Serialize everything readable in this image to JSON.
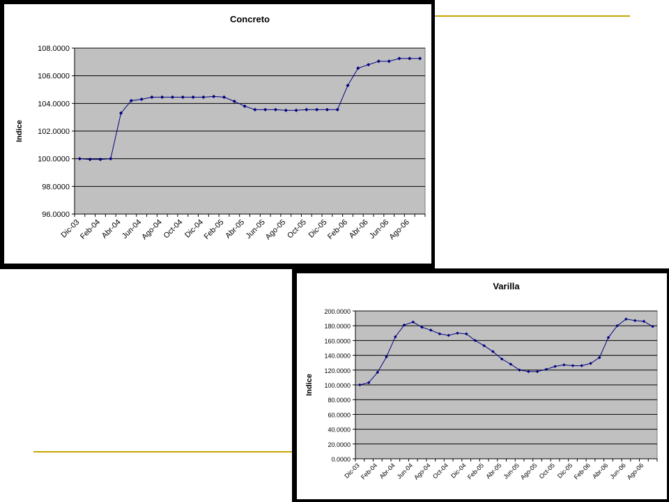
{
  "chart_data": [
    {
      "type": "line",
      "title": "Concreto",
      "xlabel": "",
      "ylabel": "Indice",
      "ylim": [
        96,
        108
      ],
      "ytick_values": [
        96,
        98,
        100,
        102,
        104,
        106,
        108
      ],
      "ytick_labels": [
        "96.0000",
        "98.0000",
        "100.0000",
        "102.0000",
        "104.0000",
        "106.0000",
        "108.0000"
      ],
      "x": [
        "Dic-03",
        "Ene-04",
        "Feb-04",
        "Mar-04",
        "Abr-04",
        "May-04",
        "Jun-04",
        "Jul-04",
        "Ago-04",
        "Sep-04",
        "Oct-04",
        "Nov-04",
        "Dic-04",
        "Ene-05",
        "Feb-05",
        "Mar-05",
        "Abr-05",
        "May-05",
        "Jun-05",
        "Jul-05",
        "Ago-05",
        "Sep-05",
        "Oct-05",
        "Nov-05",
        "Dic-05",
        "Ene-06",
        "Feb-06",
        "Mar-06",
        "Abr-06",
        "May-06",
        "Jun-06",
        "Jul-06",
        "Ago-06",
        "Sep-06"
      ],
      "xtick_labels": [
        "Dic-03",
        "Feb-04",
        "Abr-04",
        "Jun-04",
        "Ago-04",
        "Oct-04",
        "Dic-04",
        "Feb-05",
        "Abr-05",
        "Jun-05",
        "Ago-05",
        "Oct-05",
        "Dic-05",
        "Feb-06",
        "Abr-06",
        "Jun-06",
        "Ago-06"
      ],
      "series": [
        {
          "values": [
            100.0,
            99.95,
            99.95,
            100.0,
            103.3,
            104.2,
            104.3,
            104.45,
            104.45,
            104.45,
            104.45,
            104.45,
            104.45,
            104.5,
            104.45,
            104.15,
            103.8,
            103.55,
            103.55,
            103.55,
            103.5,
            103.5,
            103.55,
            103.55,
            103.55,
            103.55,
            105.3,
            106.55,
            106.8,
            107.05,
            107.05,
            107.25,
            107.25,
            107.25
          ]
        }
      ],
      "grid": true,
      "colors": {
        "line": "#000080",
        "plot_bg": "#c0c0c0"
      }
    },
    {
      "type": "line",
      "title": "Varilla",
      "xlabel": "",
      "ylabel": "Indice",
      "ylim": [
        0,
        200
      ],
      "ytick_values": [
        0,
        20,
        40,
        60,
        80,
        100,
        120,
        140,
        160,
        180,
        200
      ],
      "ytick_labels": [
        "0.0000",
        "20.0000",
        "40.0000",
        "60.0000",
        "80.0000",
        "100.0000",
        "120.0000",
        "140.0000",
        "160.0000",
        "180.0000",
        "200.0000"
      ],
      "x": [
        "Dic-03",
        "Ene-04",
        "Feb-04",
        "Mar-04",
        "Abr-04",
        "May-04",
        "Jun-04",
        "Jul-04",
        "Ago-04",
        "Sep-04",
        "Oct-04",
        "Nov-04",
        "Dic-04",
        "Ene-05",
        "Feb-05",
        "Mar-05",
        "Abr-05",
        "May-05",
        "Jun-05",
        "Jul-05",
        "Ago-05",
        "Sep-05",
        "Oct-05",
        "Nov-05",
        "Dic-05",
        "Ene-06",
        "Feb-06",
        "Mar-06",
        "Abr-06",
        "May-06",
        "Jun-06",
        "Jul-06",
        "Ago-06",
        "Sep-06"
      ],
      "xtick_labels": [
        "Dic-03",
        "Feb-04",
        "Abr-04",
        "Jun-04",
        "Ago-04",
        "Oct-04",
        "Dic-04",
        "Feb-05",
        "Abr-05",
        "Jun-05",
        "Ago-05",
        "Oct-05",
        "Dic-05",
        "Feb-06",
        "Abr-06",
        "Jun-06",
        "Ago-06"
      ],
      "series": [
        {
          "values": [
            100,
            103,
            117,
            138,
            165,
            181,
            185,
            178,
            174,
            169,
            167,
            170,
            169,
            160,
            153,
            145,
            135,
            128,
            120,
            118,
            118,
            121,
            125,
            127,
            126,
            126,
            129,
            137,
            164,
            180,
            189,
            187,
            186,
            179
          ]
        }
      ],
      "grid": true,
      "colors": {
        "line": "#000080",
        "plot_bg": "#c0c0c0"
      }
    }
  ]
}
